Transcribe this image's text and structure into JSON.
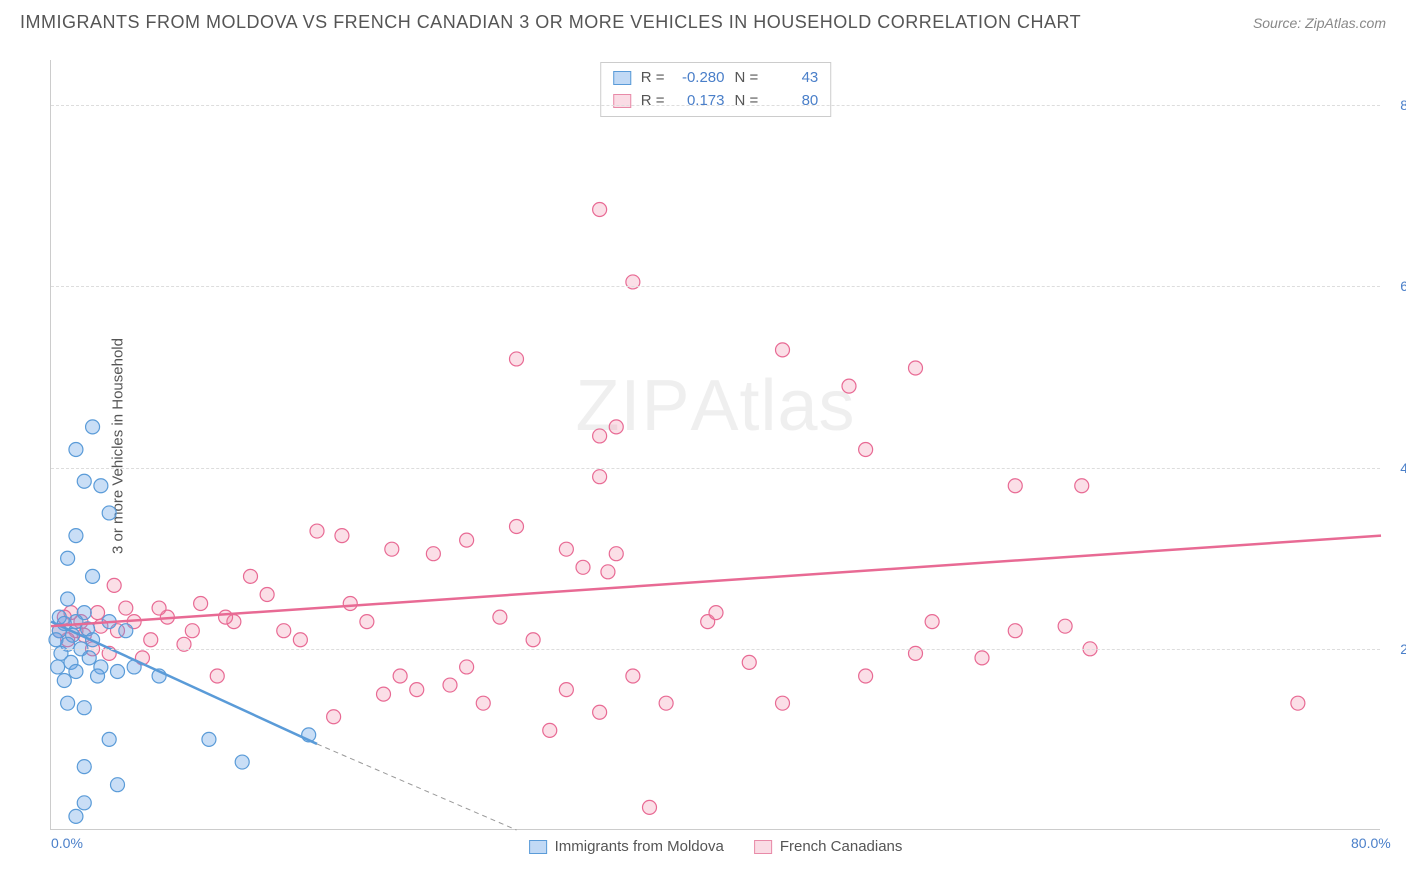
{
  "title": "IMMIGRANTS FROM MOLDOVA VS FRENCH CANADIAN 3 OR MORE VEHICLES IN HOUSEHOLD CORRELATION CHART",
  "source": "Source: ZipAtlas.com",
  "ylabel": "3 or more Vehicles in Household",
  "watermark_a": "ZIP",
  "watermark_b": "Atlas",
  "xlim": [
    0,
    80
  ],
  "ylim": [
    0,
    85
  ],
  "xticks": [
    {
      "v": 0,
      "label": "0.0%"
    },
    {
      "v": 80,
      "label": "80.0%"
    }
  ],
  "yticks": [
    {
      "v": 20,
      "label": "20.0%"
    },
    {
      "v": 40,
      "label": "40.0%"
    },
    {
      "v": 60,
      "label": "60.0%"
    },
    {
      "v": 80,
      "label": "80.0%"
    }
  ],
  "series": {
    "blue": {
      "name": "Immigrants from Moldova",
      "stroke": "#5a9bd8",
      "fill": "rgba(100,160,230,0.35)",
      "R": "-0.280",
      "N": "43",
      "trend": {
        "x1": 0,
        "y1": 23,
        "x2": 16,
        "y2": 9.5,
        "dash_extend_x": 28,
        "dash_extend_y": 0
      },
      "points": [
        [
          2.5,
          44.5
        ],
        [
          1.5,
          42
        ],
        [
          2,
          38.5
        ],
        [
          3,
          38
        ],
        [
          3.5,
          35
        ],
        [
          1.5,
          32.5
        ],
        [
          1,
          30
        ],
        [
          2.5,
          28
        ],
        [
          1,
          25.5
        ],
        [
          2,
          24
        ],
        [
          0.5,
          23.5
        ],
        [
          1.5,
          23
        ],
        [
          0.8,
          22.8
        ],
        [
          2.2,
          22.2
        ],
        [
          0.5,
          22
        ],
        [
          1.3,
          21.5
        ],
        [
          2.5,
          21
        ],
        [
          0.3,
          21
        ],
        [
          1,
          20.5
        ],
        [
          1.8,
          20
        ],
        [
          0.6,
          19.5
        ],
        [
          2.3,
          19
        ],
        [
          1.2,
          18.5
        ],
        [
          3,
          18
        ],
        [
          0.4,
          18
        ],
        [
          1.5,
          17.5
        ],
        [
          2.8,
          17
        ],
        [
          0.8,
          16.5
        ],
        [
          4,
          17.5
        ],
        [
          5,
          18
        ],
        [
          6.5,
          17
        ],
        [
          4.5,
          22
        ],
        [
          3.5,
          23
        ],
        [
          1,
          14
        ],
        [
          2,
          13.5
        ],
        [
          3.5,
          10
        ],
        [
          9.5,
          10
        ],
        [
          11.5,
          7.5
        ],
        [
          2,
          7
        ],
        [
          4,
          5
        ],
        [
          2,
          3
        ],
        [
          1.5,
          1.5
        ],
        [
          15.5,
          10.5
        ]
      ]
    },
    "pink": {
      "name": "French Canadians",
      "stroke": "#e86a94",
      "fill": "rgba(240,140,170,0.28)",
      "R": "0.173",
      "N": "80",
      "trend": {
        "x1": 0,
        "y1": 22.5,
        "x2": 80,
        "y2": 32.5
      },
      "points": [
        [
          33,
          68.5
        ],
        [
          35,
          60.5
        ],
        [
          28,
          52
        ],
        [
          44,
          53
        ],
        [
          52,
          51
        ],
        [
          48,
          49
        ],
        [
          33,
          43.5
        ],
        [
          34,
          44.5
        ],
        [
          49,
          42
        ],
        [
          58,
          38
        ],
        [
          33,
          39
        ],
        [
          28,
          33.5
        ],
        [
          16,
          33
        ],
        [
          17.5,
          32.5
        ],
        [
          20.5,
          31
        ],
        [
          23,
          30.5
        ],
        [
          25,
          32
        ],
        [
          31,
          31
        ],
        [
          32,
          29
        ],
        [
          33.5,
          28.5
        ],
        [
          34,
          30.5
        ],
        [
          39.5,
          23
        ],
        [
          58,
          22
        ],
        [
          61,
          22.5
        ],
        [
          62.5,
          20
        ],
        [
          56,
          19
        ],
        [
          52,
          19.5
        ],
        [
          49,
          17
        ],
        [
          44,
          14
        ],
        [
          37,
          14
        ],
        [
          36,
          2.5
        ],
        [
          33,
          13
        ],
        [
          30,
          11
        ],
        [
          31,
          15.5
        ],
        [
          26,
          14
        ],
        [
          25,
          18
        ],
        [
          24,
          16
        ],
        [
          22,
          15.5
        ],
        [
          21,
          17
        ],
        [
          20,
          15
        ],
        [
          17,
          12.5
        ],
        [
          15,
          21
        ],
        [
          14,
          22
        ],
        [
          13,
          26
        ],
        [
          12,
          28
        ],
        [
          11,
          23
        ],
        [
          10.5,
          23.5
        ],
        [
          10,
          17
        ],
        [
          9,
          25
        ],
        [
          8.5,
          22
        ],
        [
          8,
          20.5
        ],
        [
          7,
          23.5
        ],
        [
          6.5,
          24.5
        ],
        [
          6,
          21
        ],
        [
          5.5,
          19
        ],
        [
          5,
          23
        ],
        [
          4.5,
          24.5
        ],
        [
          4,
          22
        ],
        [
          3.8,
          27
        ],
        [
          3.5,
          19.5
        ],
        [
          3,
          22.5
        ],
        [
          2.8,
          24
        ],
        [
          2.5,
          20
        ],
        [
          2,
          21.5
        ],
        [
          1.8,
          23
        ],
        [
          1.5,
          22
        ],
        [
          1.2,
          24
        ],
        [
          1,
          21
        ],
        [
          0.8,
          23.5
        ],
        [
          0.5,
          22
        ],
        [
          75,
          14
        ],
        [
          62,
          38
        ],
        [
          53,
          23
        ],
        [
          42,
          18.5
        ],
        [
          18,
          25
        ],
        [
          19,
          23
        ],
        [
          29,
          21
        ],
        [
          27,
          23.5
        ],
        [
          35,
          17
        ],
        [
          40,
          24
        ]
      ]
    }
  },
  "xaxis_bottom_legend": [
    {
      "swatch": "blue",
      "key": "series.blue.name"
    },
    {
      "swatch": "pink",
      "key": "series.pink.name"
    }
  ],
  "colors": {
    "axis_label": "#4a7fc9",
    "grid": "#dddddd",
    "title": "#555555"
  },
  "fontsize": {
    "title": 18,
    "tick": 14,
    "legend": 15
  }
}
